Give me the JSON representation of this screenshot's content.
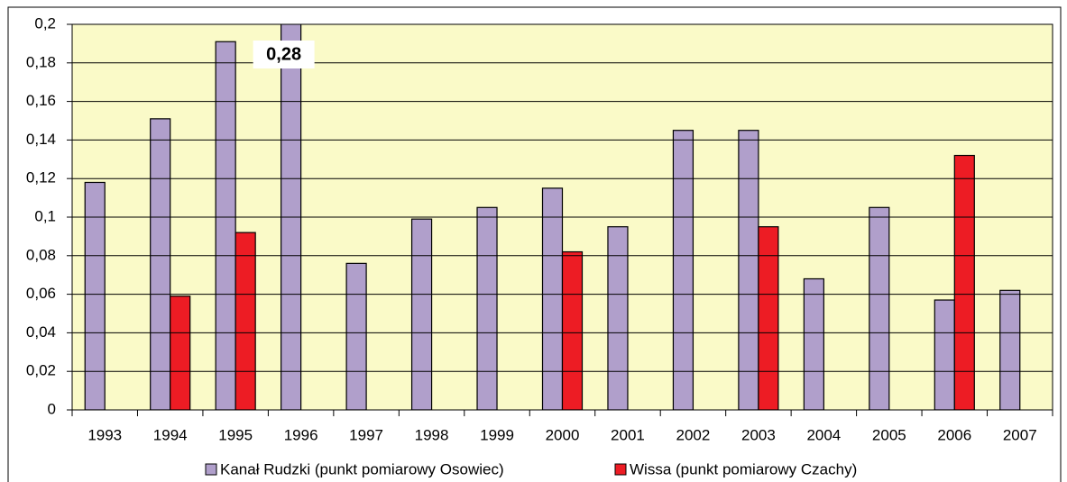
{
  "chart_data": {
    "type": "bar",
    "categories": [
      "1993",
      "1994",
      "1995",
      "1996",
      "1997",
      "1998",
      "1999",
      "2000",
      "2001",
      "2002",
      "2003",
      "2004",
      "2005",
      "2006",
      "2007"
    ],
    "series": [
      {
        "name": "Kanał Rudzki (punkt pomiarowy Osowiec)",
        "color": "#b09fcb",
        "values": [
          0.118,
          0.151,
          0.191,
          0.28,
          0.076,
          0.099,
          0.105,
          0.115,
          0.095,
          0.145,
          0.145,
          0.068,
          0.105,
          0.057,
          0.062
        ],
        "value_labels": [
          null,
          null,
          null,
          "0,28",
          null,
          null,
          null,
          null,
          null,
          null,
          null,
          null,
          null,
          null,
          null
        ]
      },
      {
        "name": "Wissa (punkt pomiarowy Czachy)",
        "color": "#ed1c24",
        "values": [
          null,
          0.059,
          0.092,
          null,
          null,
          null,
          null,
          0.082,
          null,
          null,
          0.095,
          null,
          null,
          0.132,
          null
        ]
      }
    ],
    "ylim": [
      0,
      0.2
    ],
    "yticks": [
      0,
      {
        "value": 0.02,
        "label": "0,02"
      },
      {
        "value": 0.04,
        "label": "0,04"
      },
      {
        "value": 0.06,
        "label": "0,06"
      },
      {
        "value": 0.08,
        "label": "0,08"
      },
      {
        "value": 0.1,
        "label": "0,1"
      },
      {
        "value": 0.12,
        "label": "0,12"
      },
      {
        "value": 0.14,
        "label": "0,14"
      },
      {
        "value": 0.16,
        "label": "0,16"
      },
      {
        "value": 0.18,
        "label": "0,18"
      },
      {
        "value": 0.2,
        "label": "0,2"
      }
    ],
    "grid": true,
    "legend": "bottom"
  }
}
